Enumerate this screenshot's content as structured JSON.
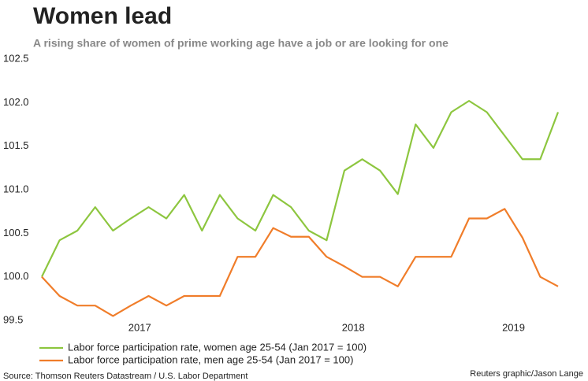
{
  "chart_data": {
    "type": "line",
    "title": "Women lead",
    "subtitle": "A rising share of women of prime working age have a job or are looking for one",
    "source": "Source: Thomson Reuters Datastream / U.S. Labor Department",
    "credit": "Reuters graphic/Jason Lange",
    "x": [
      0,
      1,
      2,
      3,
      4,
      5,
      6,
      7,
      8,
      9,
      10,
      11,
      12,
      13,
      14,
      15,
      16,
      17,
      18,
      19,
      20,
      21,
      22,
      23,
      24,
      25,
      26,
      27,
      28,
      29
    ],
    "xlim": [
      0,
      29
    ],
    "xticks": [
      {
        "value": 5.5,
        "label": "2017"
      },
      {
        "value": 17.5,
        "label": "2018"
      },
      {
        "value": 26.5,
        "label": "2019"
      }
    ],
    "ylim": [
      99.5,
      102.5
    ],
    "yticks": [
      {
        "value": 99.5,
        "label": "99.5"
      },
      {
        "value": 100,
        "label": "100.0"
      },
      {
        "value": 100.5,
        "label": "100.5"
      },
      {
        "value": 101,
        "label": "101.0"
      },
      {
        "value": 101.5,
        "label": "101.5"
      },
      {
        "value": 102,
        "label": "102.0"
      },
      {
        "value": 102.5,
        "label": "102.5"
      }
    ],
    "grid": false,
    "series": [
      {
        "name": "Labor force participation rate, women age 25-54 (Jan 2017 = 100)",
        "color": "#8dc63f",
        "values": [
          100,
          100.42,
          100.53,
          100.8,
          100.53,
          100.67,
          100.8,
          100.67,
          100.94,
          100.53,
          100.94,
          100.67,
          100.53,
          100.94,
          100.8,
          100.53,
          100.42,
          101.22,
          101.35,
          101.22,
          100.95,
          101.75,
          101.48,
          101.89,
          102.02,
          101.89,
          101.62,
          101.35,
          101.35,
          101.89
        ]
      },
      {
        "name": "Labor force participation rate, men age 25-54 (Jan 2017 = 100)",
        "color": "#f07d2a",
        "values": [
          100,
          99.78,
          99.67,
          99.67,
          99.55,
          99.67,
          99.78,
          99.67,
          99.78,
          99.78,
          99.78,
          100.23,
          100.23,
          100.56,
          100.46,
          100.46,
          100.23,
          100.12,
          100,
          100,
          99.89,
          100.23,
          100.23,
          100.23,
          100.67,
          100.67,
          100.78,
          100.45,
          100,
          99.89
        ]
      }
    ]
  }
}
